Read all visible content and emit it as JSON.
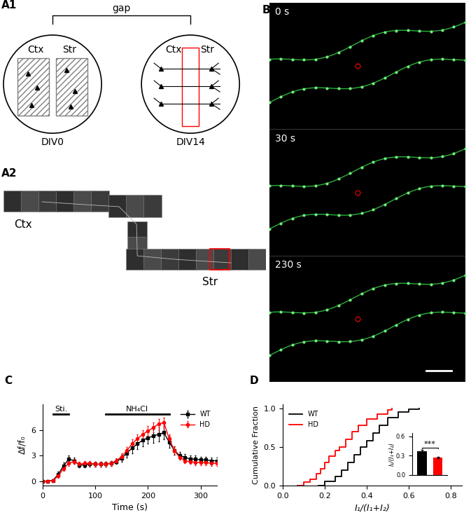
{
  "diagram": {
    "A1": {
      "label": "A1",
      "bracket": "gap",
      "dishes": [
        {
          "regions": [
            "Ctx",
            "Str"
          ],
          "caption": "DIV0"
        },
        {
          "regions": [
            "Ctx",
            "Str"
          ],
          "caption": "DIV14"
        }
      ]
    },
    "A2": {
      "label": "A2",
      "regions": [
        "Ctx",
        "Str"
      ]
    },
    "B": {
      "label": "B",
      "timepoints": [
        "0 s",
        "30 s",
        "230 s"
      ]
    }
  },
  "chart_data": [
    {
      "label": "C",
      "type": "line",
      "x": [
        0,
        10,
        20,
        30,
        40,
        50,
        60,
        70,
        80,
        90,
        100,
        110,
        120,
        130,
        140,
        150,
        160,
        170,
        180,
        190,
        200,
        210,
        220,
        230,
        240,
        250,
        260,
        270,
        280,
        290,
        300,
        310,
        320,
        330
      ],
      "series": [
        {
          "name": "WT",
          "color": "black",
          "marker": "s",
          "values": [
            0,
            0,
            0.1,
            0.8,
            1.8,
            2.6,
            2.4,
            1.9,
            1.9,
            2.0,
            2.0,
            2.0,
            2.0,
            2.1,
            2.3,
            2.7,
            3.3,
            3.9,
            4.4,
            4.8,
            5.1,
            5.3,
            5.5,
            5.7,
            4.6,
            3.6,
            3.0,
            2.8,
            2.6,
            2.6,
            2.5,
            2.5,
            2.4,
            2.4
          ],
          "errors": [
            0,
            0,
            0.05,
            0.3,
            0.4,
            0.4,
            0.4,
            0.3,
            0.3,
            0.3,
            0.3,
            0.3,
            0.3,
            0.3,
            0.3,
            0.4,
            0.5,
            0.6,
            0.6,
            0.7,
            0.7,
            0.8,
            0.8,
            0.8,
            0.7,
            0.5,
            0.4,
            0.4,
            0.4,
            0.4,
            0.4,
            0.4,
            0.4,
            0.4
          ]
        },
        {
          "name": "HD",
          "color": "red",
          "marker": "o",
          "values": [
            0,
            0,
            0.1,
            0.6,
            1.5,
            2.1,
            2.3,
            2.0,
            2.1,
            2.1,
            2.0,
            2.0,
            2.0,
            2.1,
            2.4,
            2.9,
            3.6,
            4.4,
            5.0,
            5.5,
            5.9,
            6.3,
            6.7,
            6.9,
            5.0,
            3.6,
            2.8,
            2.4,
            2.3,
            2.2,
            2.2,
            2.2,
            2.1,
            2.1
          ],
          "errors": [
            0,
            0,
            0.05,
            0.2,
            0.3,
            0.3,
            0.3,
            0.3,
            0.3,
            0.3,
            0.3,
            0.3,
            0.3,
            0.3,
            0.3,
            0.4,
            0.4,
            0.5,
            0.5,
            0.5,
            0.6,
            0.6,
            0.6,
            0.6,
            0.5,
            0.4,
            0.3,
            0.3,
            0.3,
            0.3,
            0.3,
            0.3,
            0.3,
            0.3
          ]
        }
      ],
      "x_label": "Time (s)",
      "y_label": "Δf/f₀",
      "xlim": [
        0,
        330
      ],
      "xticks": [
        0,
        100,
        200,
        300
      ],
      "ylim": [
        -0.5,
        9
      ],
      "yticks": [
        0,
        3,
        6
      ],
      "legend": "upper right",
      "annotations": [
        {
          "text": "Sti.",
          "start": 20,
          "end": 50
        },
        {
          "text": "NH₄Cl",
          "start": 120,
          "end": 240
        }
      ]
    },
    {
      "label": "D",
      "type": "step",
      "series": [
        {
          "name": "WT",
          "color": "black",
          "x": [
            0.17,
            0.2,
            0.25,
            0.28,
            0.31,
            0.34,
            0.37,
            0.4,
            0.43,
            0.46,
            0.5,
            0.55,
            0.6,
            0.65
          ],
          "values": [
            0,
            0.05,
            0.12,
            0.2,
            0.3,
            0.4,
            0.5,
            0.58,
            0.68,
            0.78,
            0.88,
            0.95,
            0.99,
            1.0
          ]
        },
        {
          "name": "HD",
          "color": "red",
          "x": [
            0.07,
            0.1,
            0.13,
            0.16,
            0.18,
            0.2,
            0.22,
            0.25,
            0.27,
            0.3,
            0.33,
            0.36,
            0.4,
            0.45,
            0.5,
            0.52
          ],
          "values": [
            0,
            0.04,
            0.08,
            0.15,
            0.22,
            0.3,
            0.38,
            0.45,
            0.5,
            0.6,
            0.7,
            0.78,
            0.86,
            0.93,
            0.98,
            1.0
          ]
        }
      ],
      "x_label": "I₁/(I₁+I₂)",
      "y_label": "Cumulative Fraction",
      "xlim": [
        0,
        0.85
      ],
      "xticks": [
        0.0,
        0.2,
        0.4,
        0.6,
        0.8
      ],
      "ylim": [
        0,
        1.05
      ],
      "yticks": [
        0.0,
        0.5,
        1.0
      ],
      "legend": "upper left"
    },
    {
      "type": "bar",
      "categories": [
        null,
        null
      ],
      "values": [
        0.37,
        0.27
      ],
      "errors": [
        0.02,
        0.01
      ],
      "colors": [
        "black",
        "red"
      ],
      "y_label": "I₁/(I₁+I₂)",
      "ylim": [
        0,
        0.65
      ],
      "yticks": [
        0.0,
        0.3,
        0.6
      ],
      "annotations": [
        {
          "text": "***"
        }
      ]
    }
  ]
}
